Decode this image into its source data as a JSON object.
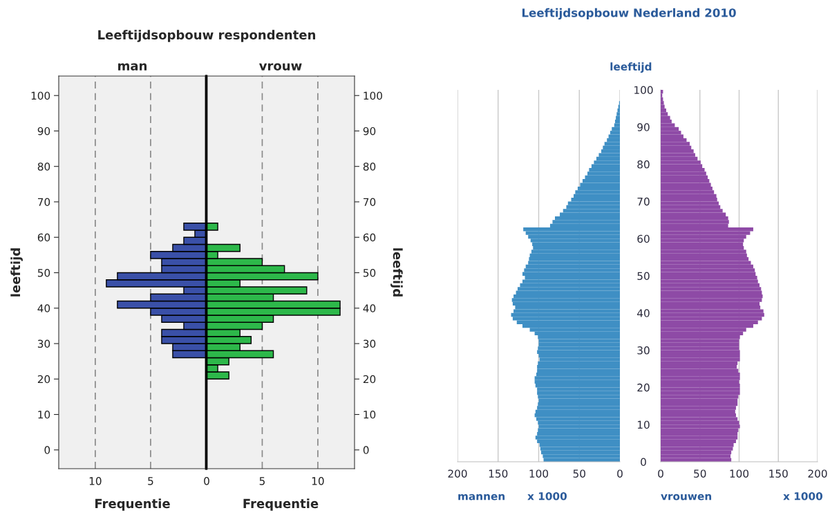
{
  "chart_data": [
    {
      "type": "histogram",
      "orientation": "horizontal",
      "title": "Leeftijdsopbouw respondenten",
      "subtitle": "man",
      "xlabel": "Frequentie",
      "ylabel": "leeftijd",
      "color": "#3a50a8",
      "bins": [
        26,
        28,
        30,
        32,
        34,
        36,
        38,
        40,
        42,
        44,
        46,
        48,
        50,
        52,
        54,
        56,
        58,
        60,
        62,
        64
      ],
      "values": [
        3,
        3,
        4,
        4,
        2,
        4,
        5,
        8,
        5,
        2,
        9,
        8,
        4,
        4,
        5,
        3,
        2,
        1,
        2
      ],
      "xlim": [
        13.3,
        0
      ],
      "xticks": [
        10,
        5,
        {
          "value": 0,
          "label": null
        }
      ],
      "ylim": [
        -5.3,
        105.5
      ],
      "yticks": [
        0,
        10,
        20,
        30,
        40,
        50,
        60,
        70,
        80,
        90,
        100
      ],
      "grid": "x",
      "line_style": "dashed"
    },
    {
      "type": "histogram",
      "orientation": "horizontal",
      "subtitle": "vrouw",
      "xlabel": "Frequentie",
      "ylabel": "leeftijd",
      "color": "#2db84a",
      "bins": [
        20,
        22,
        24,
        26,
        28,
        30,
        32,
        34,
        36,
        38,
        40,
        42,
        44,
        46,
        48,
        50,
        52,
        54,
        56,
        58,
        60,
        62,
        64
      ],
      "values": [
        2,
        1,
        2,
        6,
        3,
        4,
        3,
        5,
        6,
        12,
        12,
        6,
        9,
        3,
        10,
        7,
        5,
        1,
        3,
        null,
        null,
        1
      ],
      "xlim": [
        0,
        13.3
      ],
      "xticks": [
        0,
        5,
        10
      ],
      "ylim": [
        -5.3,
        105.5
      ],
      "yticks": [
        0,
        10,
        20,
        30,
        40,
        50,
        60,
        70,
        80,
        90,
        100
      ],
      "grid": "x",
      "line_style": "dashed"
    },
    {
      "type": "histogram",
      "orientation": "horizontal",
      "title": "Leeftijdsopbouw Nederland 2010",
      "xlabel": "mannen",
      "annotations": [
        "x 1000"
      ],
      "color": "#3f8fc4",
      "bins": [
        0,
        1,
        2,
        3,
        4,
        5,
        6,
        7,
        8,
        9,
        10,
        11,
        12,
        13,
        14,
        15,
        16,
        17,
        18,
        19,
        20,
        21,
        22,
        23,
        24,
        25,
        26,
        27,
        28,
        29,
        30,
        31,
        32,
        33,
        34,
        35,
        36,
        37,
        38,
        39,
        40,
        41,
        42,
        43,
        44,
        45,
        46,
        47,
        48,
        49,
        50,
        51,
        52,
        53,
        54,
        55,
        56,
        57,
        58,
        59,
        60,
        61,
        62,
        63,
        64,
        65,
        66,
        67,
        68,
        69,
        70,
        71,
        72,
        73,
        74,
        75,
        76,
        77,
        78,
        79,
        80,
        81,
        82,
        83,
        84,
        85,
        86,
        87,
        88,
        89,
        90,
        91,
        92,
        93,
        94,
        95,
        96,
        97
      ],
      "values": [
        94,
        95,
        97,
        98,
        99,
        102,
        104,
        102,
        101,
        100,
        101,
        103,
        105,
        104,
        102,
        101,
        100,
        101,
        102,
        102,
        104,
        105,
        105,
        103,
        102,
        102,
        101,
        99,
        100,
        102,
        101,
        100,
        100,
        101,
        105,
        111,
        120,
        127,
        132,
        134,
        131,
        129,
        132,
        133,
        131,
        128,
        126,
        123,
        120,
        117,
        120,
        118,
        116,
        113,
        112,
        111,
        109,
        107,
        108,
        110,
        113,
        116,
        119,
        86,
        83,
        80,
        74,
        70,
        66,
        64,
        60,
        57,
        55,
        52,
        49,
        46,
        43,
        40,
        38,
        35,
        32,
        29,
        26,
        23,
        21,
        19,
        16,
        14,
        12,
        10,
        7,
        6,
        5,
        4,
        3,
        2,
        1
      ],
      "xlim": [
        200,
        0
      ],
      "xticks": [
        200,
        150,
        100,
        50,
        0
      ],
      "ylim": [
        0,
        100
      ],
      "yticks": [
        0,
        10,
        20,
        30,
        40,
        50,
        60,
        70,
        80,
        90,
        100
      ],
      "tick_labels": "x",
      "grid": "x"
    },
    {
      "type": "histogram",
      "orientation": "horizontal",
      "xlabel": "vrouwen",
      "ylabel": "leeftijd",
      "annotations": [
        "x 1000"
      ],
      "color": "#8e4aa6",
      "bins": [
        0,
        1,
        2,
        3,
        4,
        5,
        6,
        7,
        8,
        9,
        10,
        11,
        12,
        13,
        14,
        15,
        16,
        17,
        18,
        19,
        20,
        21,
        22,
        23,
        24,
        25,
        26,
        27,
        28,
        29,
        30,
        31,
        32,
        33,
        34,
        35,
        36,
        37,
        38,
        39,
        40,
        41,
        42,
        43,
        44,
        45,
        46,
        47,
        48,
        49,
        50,
        51,
        52,
        53,
        54,
        55,
        56,
        57,
        58,
        59,
        60,
        61,
        62,
        63,
        64,
        65,
        66,
        67,
        68,
        69,
        70,
        71,
        72,
        73,
        74,
        75,
        76,
        77,
        78,
        79,
        80,
        81,
        82,
        83,
        84,
        85,
        86,
        87,
        88,
        89,
        90,
        91,
        92,
        93,
        94,
        95,
        96,
        97,
        98,
        99,
        100
      ],
      "values": [
        90,
        89,
        90,
        92,
        93,
        96,
        98,
        98,
        99,
        101,
        100,
        98,
        96,
        95,
        96,
        98,
        98,
        99,
        101,
        101,
        101,
        100,
        101,
        101,
        99,
        97,
        98,
        101,
        101,
        101,
        100,
        100,
        100,
        101,
        105,
        109,
        118,
        124,
        129,
        132,
        131,
        127,
        126,
        129,
        130,
        129,
        128,
        126,
        124,
        123,
        121,
        120,
        118,
        115,
        112,
        110,
        109,
        106,
        105,
        106,
        109,
        114,
        118,
        86,
        87,
        86,
        83,
        79,
        76,
        74,
        72,
        71,
        68,
        66,
        64,
        62,
        60,
        58,
        56,
        53,
        51,
        47,
        44,
        42,
        39,
        37,
        33,
        29,
        26,
        23,
        18,
        14,
        12,
        9,
        7,
        5,
        4,
        3,
        2,
        3
      ],
      "xlim": [
        0,
        200
      ],
      "xticks": [
        0,
        50,
        100,
        150,
        200
      ],
      "ylim": [
        0,
        100
      ],
      "yticks": [
        0,
        10,
        20,
        30,
        40,
        50,
        60,
        70,
        80,
        90,
        100
      ],
      "grid": "x"
    }
  ]
}
